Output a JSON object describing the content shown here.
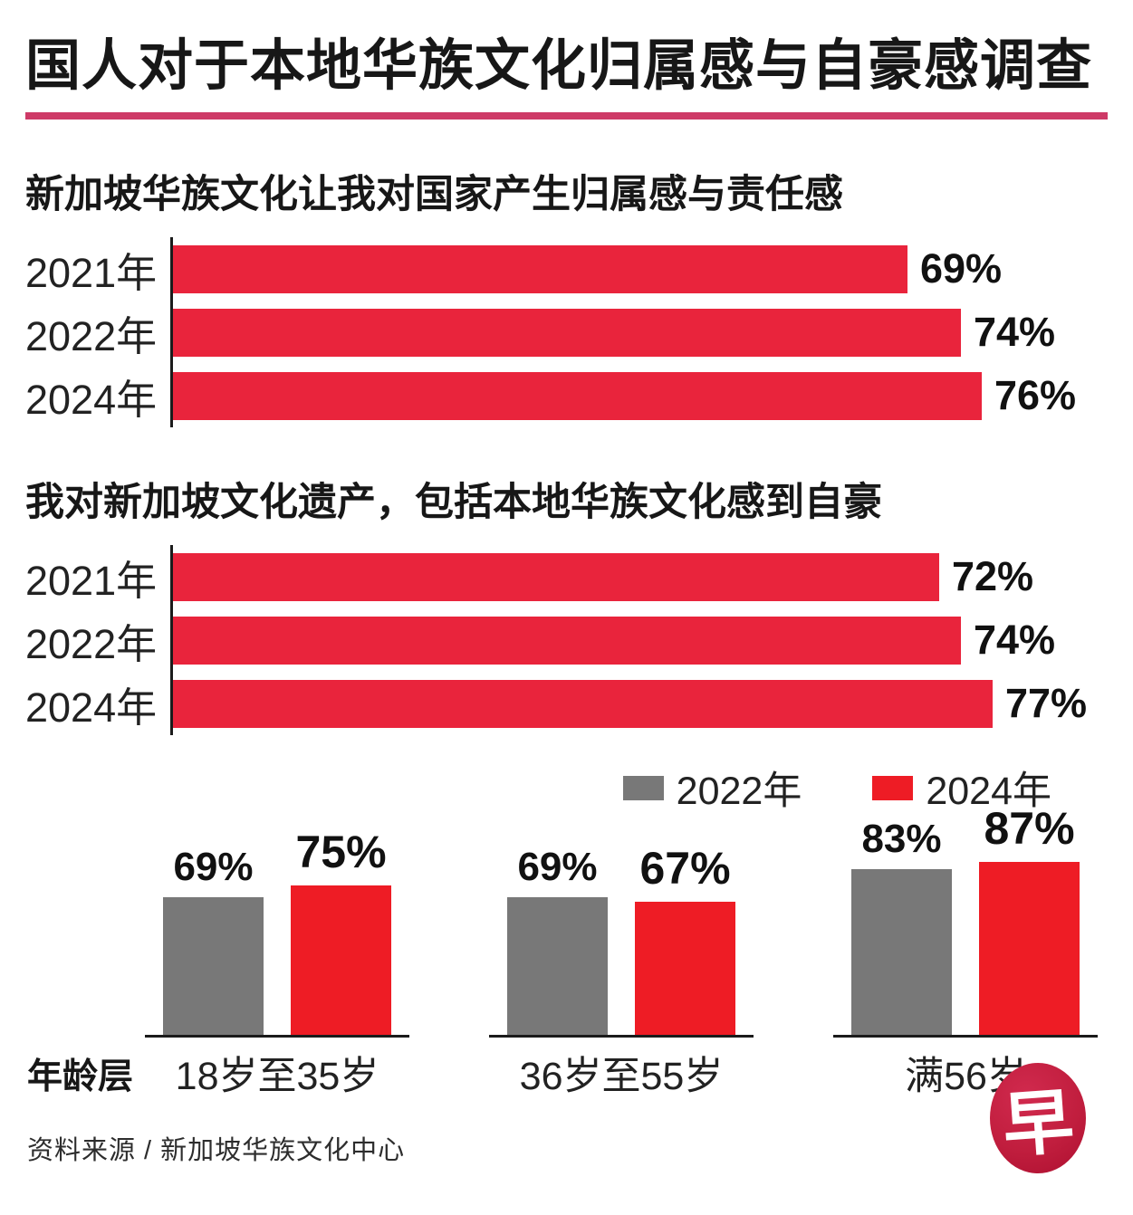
{
  "header": {
    "title": "国人对于本地华族文化归属感与自豪感调查"
  },
  "colors": {
    "hbar_red": "#e9243c",
    "group_red": "#ee1c25",
    "group_gray": "#787878",
    "title_rule_pink": "#ce3a67",
    "logo_red": "#c11e3e",
    "text_black": "#1a1a1a"
  },
  "chart_data": [
    {
      "type": "bar",
      "orientation": "horizontal",
      "title": "新加坡华族文化让我对国家产生归属感与责任感",
      "categories": [
        "2021年",
        "2022年",
        "2024年"
      ],
      "values": [
        69,
        74,
        76
      ],
      "labels": [
        "69%",
        "74%",
        "76%"
      ],
      "unit": "%",
      "xlim": [
        0,
        80
      ],
      "grid": false,
      "bar_color": "#e9243c"
    },
    {
      "type": "bar",
      "orientation": "horizontal",
      "title": "我对新加坡文化遗产，包括本地华族文化感到自豪",
      "categories": [
        "2021年",
        "2022年",
        "2024年"
      ],
      "values": [
        72,
        74,
        77
      ],
      "labels": [
        "72%",
        "74%",
        "77%"
      ],
      "unit": "%",
      "xlim": [
        0,
        80
      ],
      "grid": false,
      "bar_color": "#e9243c"
    },
    {
      "type": "bar",
      "orientation": "vertical",
      "grouped": true,
      "title": "",
      "xlabel": "年龄层",
      "categories": [
        "18岁至35岁",
        "36岁至55岁",
        "满56岁"
      ],
      "series": [
        {
          "name": "2022年",
          "color": "#787878",
          "values": [
            69,
            69,
            83
          ],
          "labels": [
            "69%",
            "69%",
            "83%"
          ]
        },
        {
          "name": "2024年",
          "color": "#ee1c25",
          "values": [
            75,
            67,
            87
          ],
          "labels": [
            "75%",
            "67%",
            "87%"
          ]
        }
      ],
      "unit": "%",
      "ylim": [
        0,
        100
      ],
      "legend_position": "top-right",
      "grid": false
    }
  ],
  "footer": {
    "source": "资料来源 / 新加坡华族文化中心",
    "logo_char": "早"
  }
}
